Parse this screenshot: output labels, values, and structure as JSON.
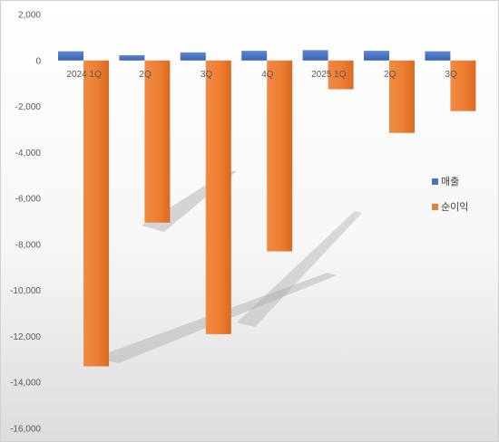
{
  "chart_data": {
    "type": "bar",
    "categories": [
      "2024 1Q",
      "2Q",
      "3Q",
      "4Q",
      "2025 1Q",
      "2Q",
      "3Q"
    ],
    "series": [
      {
        "name": "매출",
        "values": [
          400,
          230,
          350,
          420,
          450,
          420,
          400
        ],
        "color": "#4472c4"
      },
      {
        "name": "순이익",
        "values": [
          -13300,
          -7050,
          -11900,
          -8300,
          -1250,
          -3150,
          -2200
        ],
        "color": "#ed7d31"
      }
    ],
    "ylim": [
      -16000,
      2000
    ],
    "yticks": [
      2000,
      0,
      -2000,
      -4000,
      -6000,
      -8000,
      -10000,
      -12000,
      -14000,
      -16000
    ],
    "ytick_labels": [
      "2,000",
      "0",
      "-2,000",
      "-4,000",
      "-6,000",
      "-8,000",
      "-10,000",
      "-12,000",
      "-14,000",
      "-16,000"
    ],
    "legend_position": "right",
    "grid": false,
    "title": "",
    "xlabel": "",
    "ylabel": ""
  }
}
